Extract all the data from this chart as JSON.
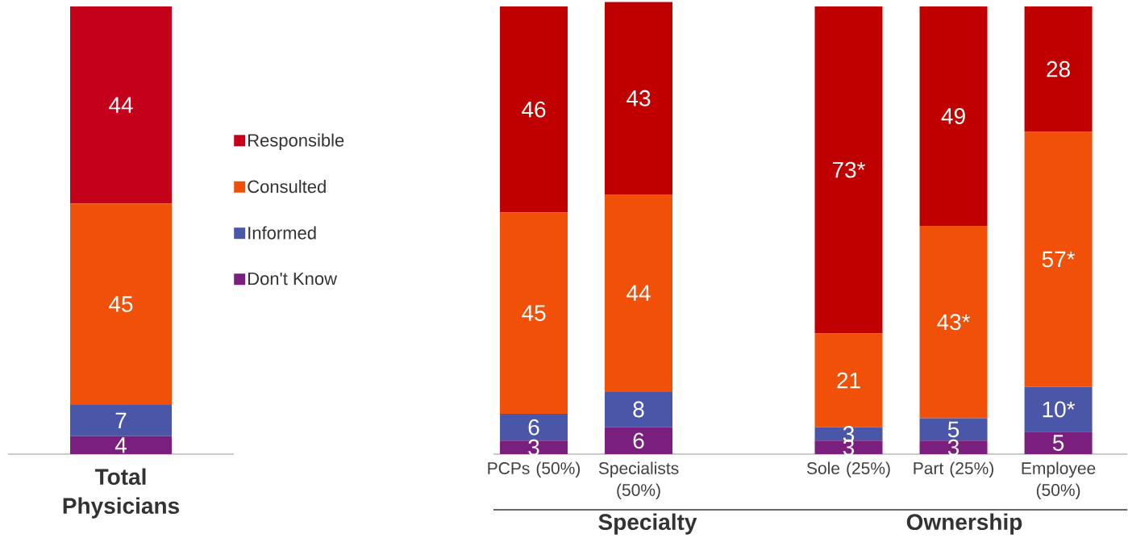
{
  "chart_data": [
    {
      "type": "bar",
      "stacked": true,
      "xlabel": "Total Physicians",
      "categories": [
        null
      ],
      "data_labels": true,
      "legend": "right",
      "series": [
        {
          "name": "Don't Know",
          "color": "#7b1f7f",
          "values": [
            4
          ]
        },
        {
          "name": "Informed",
          "color": "#4a57a8",
          "values": [
            7
          ]
        },
        {
          "name": "Consulted",
          "color": "#f05008",
          "values": [
            45
          ]
        },
        {
          "name": "Responsible",
          "color": "#c4001a",
          "values": [
            44
          ]
        }
      ]
    },
    {
      "type": "bar",
      "stacked": true,
      "xlabel": "Specialty",
      "categories": [
        "PCPs (50%)",
        "Specialists (50%)"
      ],
      "data_labels": true,
      "series": [
        {
          "color": "#7b1f7f",
          "values": [
            3,
            6
          ]
        },
        {
          "color": "#4a57a8",
          "values": [
            6,
            8
          ]
        },
        {
          "color": "#f05008",
          "values": [
            45,
            44
          ]
        },
        {
          "color": "#c00000",
          "values": [
            46,
            43
          ]
        }
      ]
    },
    {
      "type": "bar",
      "stacked": true,
      "xlabel": "Ownership",
      "categories": [
        "Sole (25%)",
        "Part (25%)",
        "Employee (50%)"
      ],
      "series": [
        {
          "color": "#7b1f7f",
          "values": [
            3,
            3,
            5
          ],
          "value_labels": [
            "3",
            "3",
            "5"
          ]
        },
        {
          "color": "#4a57a8",
          "values": [
            3,
            5,
            10
          ],
          "value_labels": [
            "3",
            "5",
            "10*"
          ]
        },
        {
          "color": "#f05008",
          "values": [
            21,
            43,
            57
          ],
          "value_labels": [
            "21",
            "43*",
            "57*"
          ]
        },
        {
          "color": "#c00000",
          "values": [
            73,
            49,
            28
          ],
          "value_labels": [
            "73*",
            "49",
            "28"
          ]
        }
      ]
    }
  ]
}
